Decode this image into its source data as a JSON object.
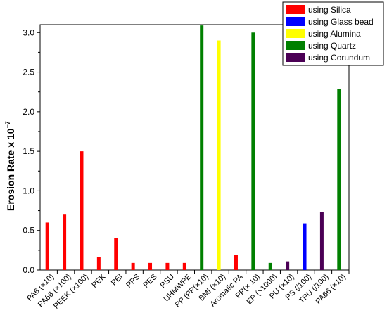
{
  "chart_data": {
    "type": "bar",
    "ylabel": "Erosion Rate x 10",
    "ylabel_exponent": "−7",
    "ylim": [
      0,
      3.1
    ],
    "yticks": [
      "0.0",
      "0.5",
      "1.0",
      "1.5",
      "2.0",
      "2.5",
      "3.0"
    ],
    "grid": false,
    "legend_position": "top-right",
    "categories": [
      "PA6 (×10)",
      "PA66 (×100)",
      "PEEK (×100)",
      "PEK",
      "PEI",
      "PPS",
      "PES",
      "PSU",
      "UHMWPE",
      "PP (PP(×10)",
      "BMI (×10)",
      "Aromatic PA",
      "PP(× 10)",
      "EP (×1000)",
      "PU (×10)",
      "PS (/100)",
      "TPU (/100)",
      "PA66 (×10)"
    ],
    "series": [
      {
        "name": "using Silica",
        "color": "#ff0000",
        "values": [
          0.6,
          0.7,
          1.5,
          0.16,
          0.4,
          0.09,
          0.09,
          0.09,
          0.09,
          null,
          null,
          0.19,
          null,
          null,
          null,
          null,
          null,
          null
        ]
      },
      {
        "name": "using Glass bead",
        "color": "#0000ff",
        "values": [
          null,
          null,
          null,
          null,
          null,
          null,
          null,
          null,
          null,
          null,
          null,
          null,
          null,
          null,
          null,
          0.59,
          null,
          null
        ]
      },
      {
        "name": "using Alumina",
        "color": "#ffff00",
        "values": [
          null,
          null,
          null,
          null,
          null,
          null,
          null,
          null,
          null,
          null,
          2.9,
          null,
          null,
          null,
          null,
          null,
          null,
          null
        ]
      },
      {
        "name": "using Quartz",
        "color": "#008000",
        "values": [
          null,
          null,
          null,
          null,
          null,
          null,
          null,
          null,
          null,
          3.09,
          null,
          null,
          3.0,
          0.09,
          null,
          null,
          null,
          2.29
        ]
      },
      {
        "name": "using Corundum",
        "color": "#4b0055",
        "values": [
          null,
          null,
          null,
          null,
          null,
          null,
          null,
          null,
          null,
          null,
          null,
          null,
          null,
          null,
          0.11,
          null,
          0.73,
          null
        ]
      }
    ]
  }
}
